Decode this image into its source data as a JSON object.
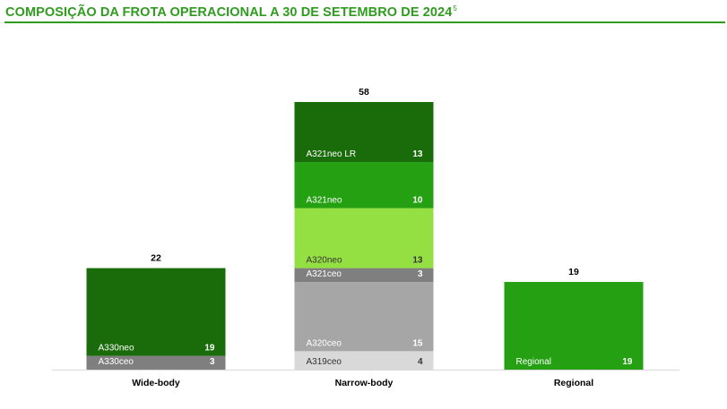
{
  "header": {
    "title": "COMPOSIÇÃO DA FROTA OPERACIONAL A 30 DE SETEMBRO DE 2024",
    "footnote": "5"
  },
  "colors": {
    "title": "#2f9b1f",
    "dark_green": "#1a6b0a",
    "mid_green": "#24a012",
    "light_green": "#94e042",
    "dark_grey": "#7f7f7f",
    "mid_grey": "#a6a6a6",
    "light_grey": "#d9d9d9"
  },
  "chart_data": {
    "type": "bar",
    "stacked": true,
    "categories": [
      "Wide-body",
      "Narrow-body",
      "Regional"
    ],
    "totals": [
      22,
      58,
      19
    ],
    "ylim": [
      0,
      58
    ],
    "grid": false,
    "legend": "none",
    "stacks": [
      {
        "category": "Wide-body",
        "segments": [
          {
            "name": "A330ceo",
            "value": 3,
            "color": "#7f7f7f",
            "text_color": "#ffffff"
          },
          {
            "name": "A330neo",
            "value": 19,
            "color": "#1a6b0a",
            "text_color": "#ffffff"
          }
        ]
      },
      {
        "category": "Narrow-body",
        "segments": [
          {
            "name": "A319ceo",
            "value": 4,
            "color": "#d9d9d9",
            "text_color": "#333333"
          },
          {
            "name": "A320ceo",
            "value": 15,
            "color": "#a6a6a6",
            "text_color": "#ffffff"
          },
          {
            "name": "A321ceo",
            "value": 3,
            "color": "#7f7f7f",
            "text_color": "#ffffff"
          },
          {
            "name": "A320neo",
            "value": 13,
            "color": "#94e042",
            "text_color": "#333333"
          },
          {
            "name": "A321neo",
            "value": 10,
            "color": "#24a012",
            "text_color": "#ffffff"
          },
          {
            "name": "A321neo LR",
            "value": 13,
            "color": "#1a6b0a",
            "text_color": "#ffffff"
          }
        ]
      },
      {
        "category": "Regional",
        "segments": [
          {
            "name": "Regional",
            "value": 19,
            "color": "#24a012",
            "text_color": "#ffffff"
          }
        ]
      }
    ]
  }
}
